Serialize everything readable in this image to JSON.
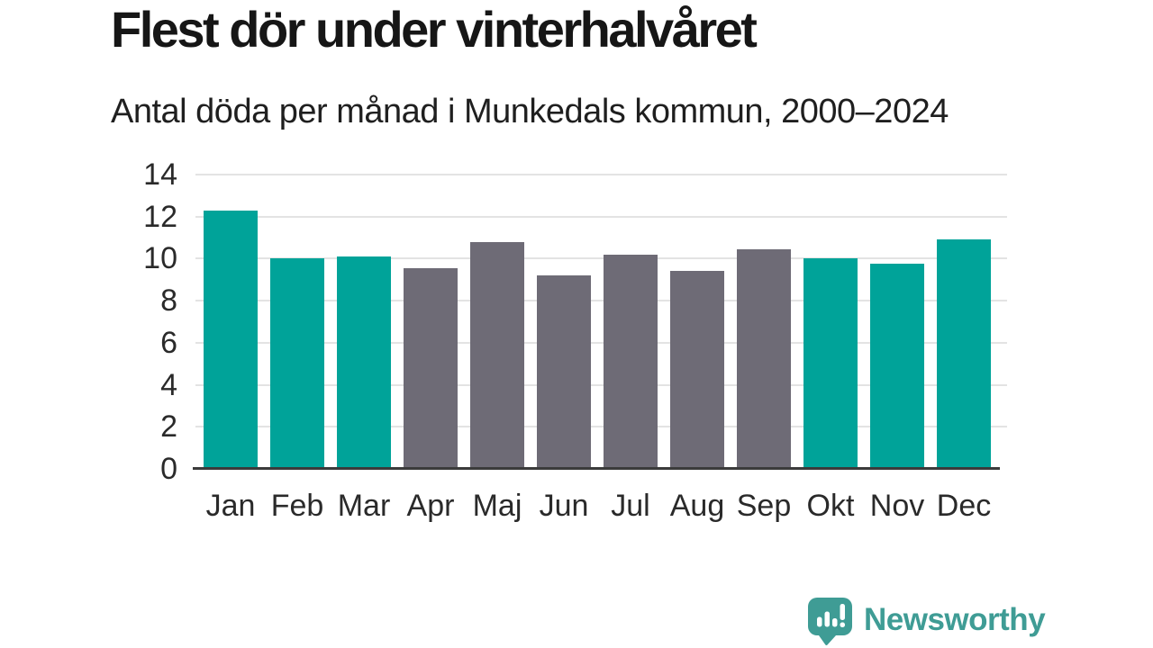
{
  "header": {
    "title": "Flest dör under vinterhalvåret",
    "subtitle": "Antal döda per månad i Munkedals kommun, 2000–2024"
  },
  "chart_data": {
    "type": "bar",
    "title": "Flest dör under vinterhalvåret",
    "subtitle": "Antal döda per månad i Munkedals kommun, 2000–2024",
    "categories": [
      "Jan",
      "Feb",
      "Mar",
      "Apr",
      "Maj",
      "Jun",
      "Jul",
      "Aug",
      "Sep",
      "Okt",
      "Nov",
      "Dec"
    ],
    "values": [
      12.3,
      10.0,
      10.1,
      9.55,
      10.8,
      9.2,
      10.2,
      9.4,
      10.45,
      10.0,
      9.75,
      10.9
    ],
    "bar_colors": [
      "teal",
      "teal",
      "teal",
      "gray",
      "gray",
      "gray",
      "gray",
      "gray",
      "gray",
      "teal",
      "teal",
      "teal"
    ],
    "palette": {
      "teal": "#00a399",
      "gray": "#6e6b76"
    },
    "xlabel": "",
    "ylabel": "",
    "yticks": [
      0,
      2,
      4,
      6,
      8,
      10,
      12,
      14
    ],
    "ylim": [
      0,
      14
    ],
    "grid": "horizontal",
    "legend": "none"
  },
  "colors": {
    "grid": "#e3e3e3",
    "axis": "#3b3b3b",
    "text": "#2a2a2a",
    "brand": "#3f9c95"
  },
  "footer": {
    "brand": "Newsworthy"
  }
}
